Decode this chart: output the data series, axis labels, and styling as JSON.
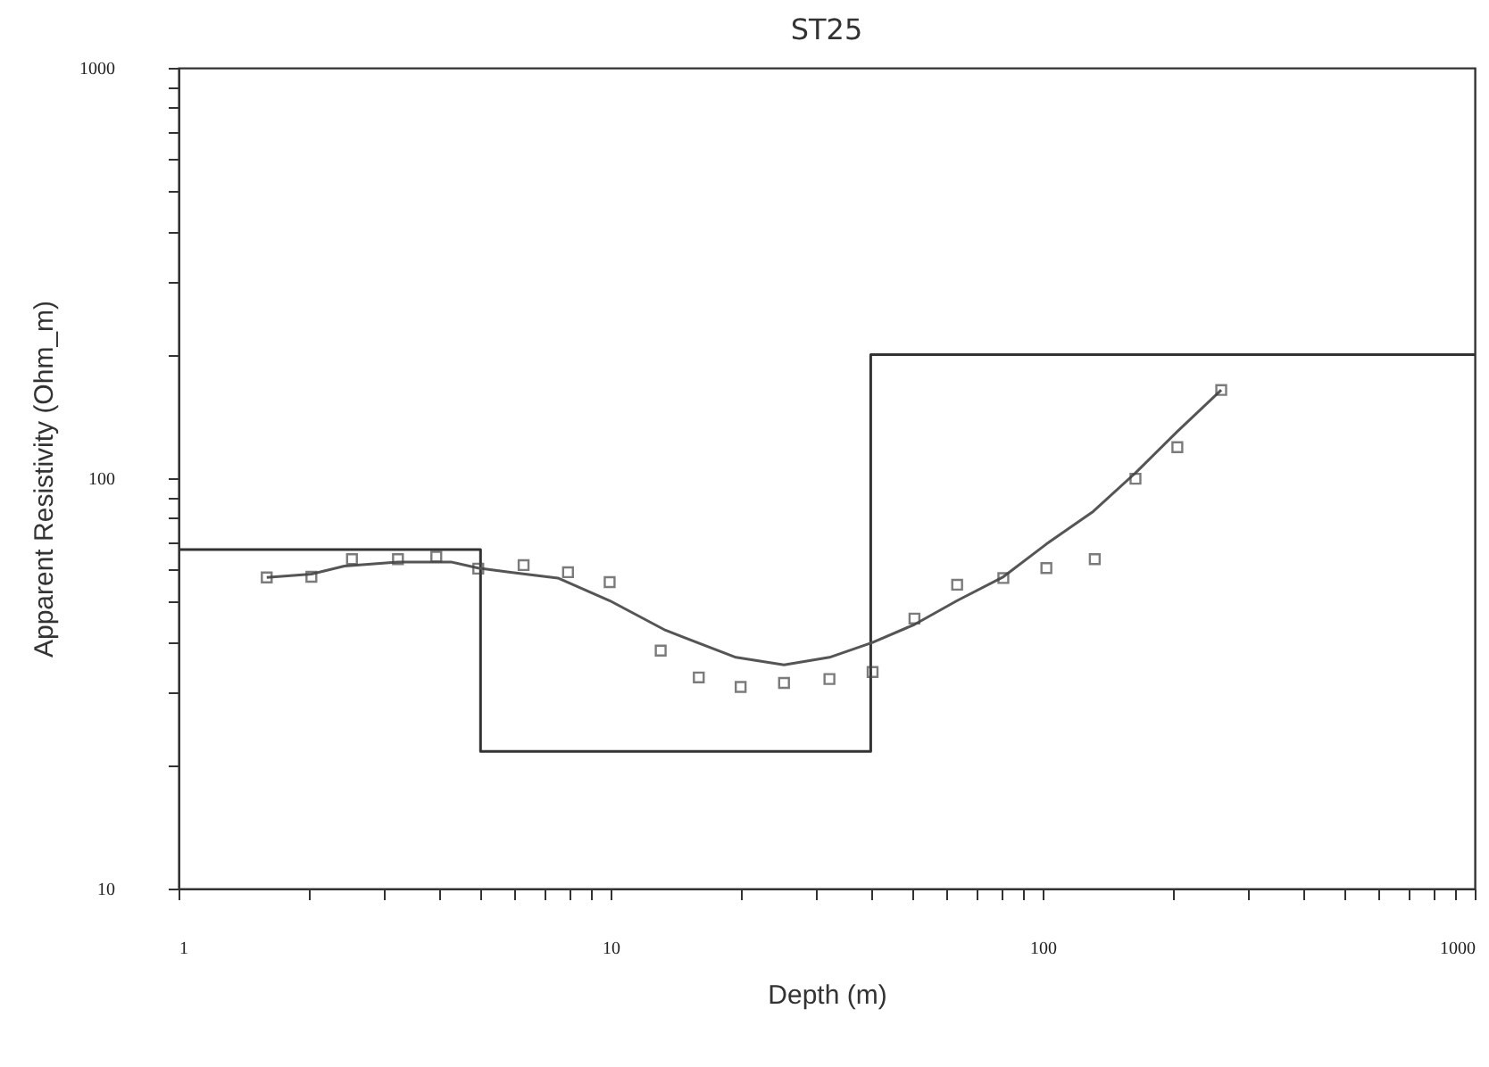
{
  "chart_data": {
    "type": "scatter",
    "title": "ST25",
    "xlabel": "Depth (m)",
    "ylabel": "Apparent Resistivity (Ohm_m)",
    "log": "xy",
    "grid": false,
    "xlim": [
      1,
      1000
    ],
    "ylim": [
      10,
      1000
    ],
    "xticks": [
      1,
      {
        "value": 2,
        "label": null
      },
      {
        "value": 3,
        "label": null
      },
      {
        "value": 4,
        "label": null
      },
      {
        "value": 5,
        "label": null
      },
      {
        "value": 6,
        "label": null
      },
      {
        "value": 7,
        "label": null
      },
      {
        "value": 8,
        "label": null
      },
      {
        "value": 9,
        "label": null
      },
      10,
      {
        "value": 20,
        "label": null
      },
      {
        "value": 30,
        "label": null
      },
      {
        "value": 40,
        "label": null
      },
      {
        "value": 50,
        "label": null
      },
      {
        "value": 60,
        "label": null
      },
      {
        "value": 70,
        "label": null
      },
      {
        "value": 80,
        "label": null
      },
      {
        "value": 90,
        "label": null
      },
      100,
      {
        "value": 200,
        "label": null
      },
      {
        "value": 300,
        "label": null
      },
      {
        "value": 400,
        "label": null
      },
      {
        "value": 500,
        "label": null
      },
      {
        "value": 600,
        "label": null
      },
      {
        "value": 700,
        "label": null
      },
      {
        "value": 800,
        "label": null
      },
      {
        "value": 900,
        "label": null
      },
      1000
    ],
    "yticks": [
      10,
      {
        "value": 20,
        "label": null
      },
      {
        "value": 30,
        "label": null
      },
      {
        "value": 40,
        "label": null
      },
      {
        "value": 50,
        "label": null
      },
      {
        "value": 60,
        "label": null
      },
      {
        "value": 70,
        "label": null
      },
      {
        "value": 80,
        "label": null
      },
      {
        "value": 90,
        "label": null
      },
      100,
      {
        "value": 200,
        "label": null
      },
      {
        "value": 300,
        "label": null
      },
      {
        "value": 400,
        "label": null
      },
      {
        "value": 500,
        "label": null
      },
      {
        "value": 600,
        "label": null
      },
      {
        "value": 700,
        "label": null
      },
      {
        "value": 800,
        "label": null
      },
      {
        "value": 900,
        "label": null
      },
      1000
    ],
    "series": [
      {
        "type": "line",
        "color": "#333333",
        "x": [
          1,
          5,
          5,
          40,
          40,
          1000
        ],
        "values": [
          67,
          67,
          21.6,
          21.6,
          200,
          200
        ]
      },
      {
        "type": "line",
        "color": "#555555",
        "x": [
          1.6,
          2.03,
          2.42,
          3.22,
          4.27,
          4.94,
          5.87,
          7.55,
          9.95,
          13.4,
          19.5,
          25.2,
          32.1,
          40.4,
          50.5,
          63.4,
          81.1,
          102,
          131,
          164,
          205,
          259
        ],
        "values": [
          57.3,
          58.4,
          61.1,
          62.5,
          62.5,
          60.4,
          59,
          57.1,
          50.3,
          42.6,
          36.6,
          35.1,
          36.6,
          39.8,
          44,
          50.3,
          57.5,
          69.1,
          83,
          103,
          130,
          164
        ]
      },
      {
        "marker": "square",
        "color": "#444444",
        "x": [
          1.6,
          2.03,
          2.52,
          3.22,
          3.95,
          4.94,
          6.29,
          7.97,
          9.95,
          13.06,
          16,
          20,
          25.2,
          32.1,
          40.4,
          50.5,
          63.4,
          81.1,
          102,
          132,
          164,
          205,
          259
        ],
        "values": [
          57.3,
          57.5,
          63.5,
          63.5,
          64.4,
          60.2,
          61.4,
          59,
          55.8,
          38,
          32.7,
          31,
          31.7,
          32.4,
          33.7,
          45.5,
          55,
          57.1,
          60.4,
          63.5,
          99.7,
          119,
          164
        ]
      }
    ]
  }
}
